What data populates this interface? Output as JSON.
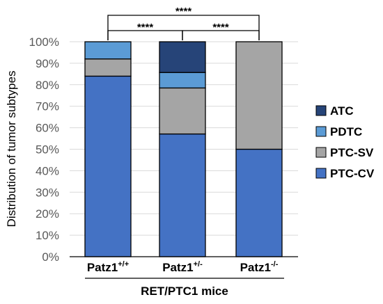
{
  "chart_data": {
    "type": "bar",
    "stacked": true,
    "categories": [
      {
        "base": "Patz1",
        "sup": "+/+"
      },
      {
        "base": "Patz1",
        "sup": "+/-"
      },
      {
        "base": "Patz1",
        "sup": "-/-"
      }
    ],
    "series": [
      {
        "name": "PTC-CV",
        "color": "#4472C4",
        "values": [
          84,
          57.1,
          50
        ]
      },
      {
        "name": "PTC-SV",
        "color": "#A5A5A5",
        "values": [
          8,
          21.4,
          50
        ]
      },
      {
        "name": "PDTC",
        "color": "#5B9BD5",
        "values": [
          8,
          7.2,
          0
        ]
      },
      {
        "name": "ATC",
        "color": "#264478",
        "values": [
          0,
          14.3,
          0
        ]
      }
    ],
    "ylabel": "Distribution of tumor subtypes",
    "xlabel": "RET/PTC1 mice",
    "ylim": [
      0,
      100
    ],
    "yticks": [
      "0%",
      "10%",
      "20%",
      "30%",
      "40%",
      "50%",
      "60%",
      "70%",
      "80%",
      "90%",
      "100%"
    ],
    "legend_order": [
      "ATC",
      "PDTC",
      "PTC-SV",
      "PTC-CV"
    ],
    "legend_position": "right",
    "grid": true,
    "significance": [
      {
        "from": 0,
        "to": 2,
        "label": "****"
      },
      {
        "from": 0,
        "to": 1,
        "label": "****"
      },
      {
        "from": 1,
        "to": 2,
        "label": "****"
      }
    ]
  }
}
